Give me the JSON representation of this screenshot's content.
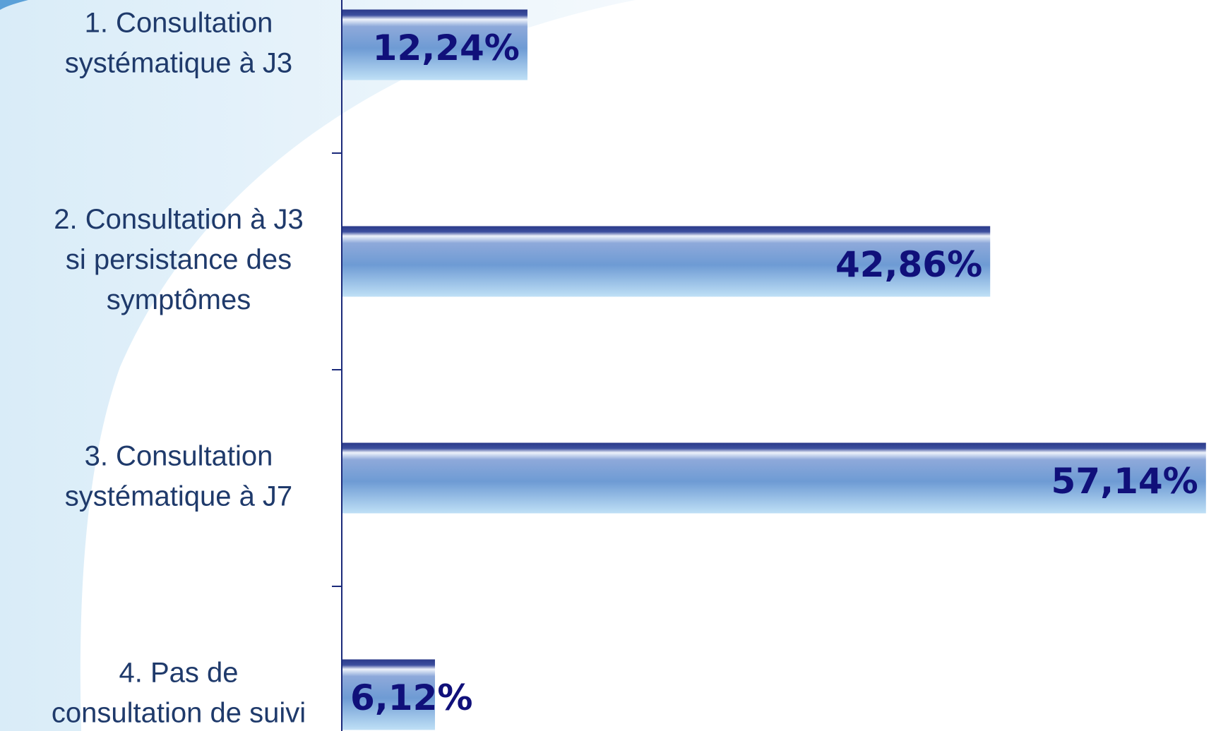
{
  "chart_data": {
    "type": "bar",
    "orientation": "horizontal",
    "categories": [
      [
        "1. Consultation",
        "systématique à J3"
      ],
      [
        "2. Consultation à J3",
        "si persistance des",
        "symptômes"
      ],
      [
        "3. Consultation",
        "systématique à J7"
      ],
      [
        "4. Pas de",
        "consultation de suivi"
      ]
    ],
    "values": [
      12.24,
      42.86,
      57.14,
      6.12
    ],
    "value_labels": [
      "12,24%",
      "42,86%",
      "57,14%",
      "6,12%"
    ],
    "color": "#6e9bd4"
  }
}
